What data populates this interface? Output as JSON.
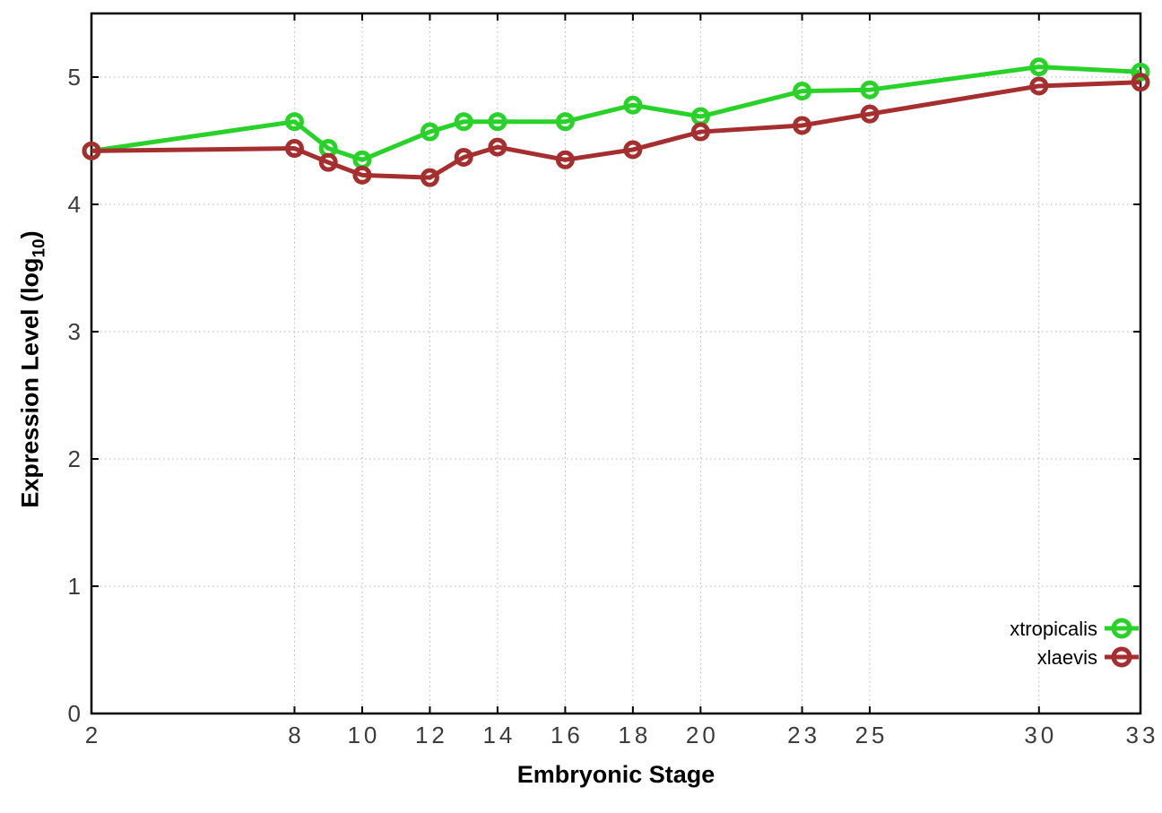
{
  "chart_data": {
    "type": "line",
    "title": "",
    "xlabel": "Embryonic Stage",
    "ylabel": {
      "text": "Expression Level (log",
      "subscript": "10",
      "suffix": ")"
    },
    "x": [
      2,
      8,
      9,
      10,
      12,
      13,
      14,
      16,
      18,
      20,
      23,
      25,
      30,
      33
    ],
    "series": [
      {
        "name": "xtropicalis",
        "color": "#28d228",
        "marker": "open-circle",
        "values": [
          4.42,
          4.65,
          4.44,
          4.35,
          4.57,
          4.65,
          4.65,
          4.65,
          4.78,
          4.69,
          4.89,
          4.9,
          5.08,
          5.04
        ]
      },
      {
        "name": "xlaevis",
        "color": "#a52e2e",
        "marker": "open-circle",
        "values": [
          4.42,
          4.44,
          4.33,
          4.23,
          4.21,
          4.37,
          4.45,
          4.35,
          4.43,
          4.57,
          4.62,
          4.71,
          4.93,
          4.96
        ]
      }
    ],
    "xticks": [
      2,
      8,
      10,
      12,
      14,
      16,
      18,
      20,
      23,
      25,
      30,
      33
    ],
    "yticks": [
      0,
      1,
      2,
      3,
      4,
      5
    ],
    "xlim": [
      2,
      33
    ],
    "ylim": [
      0,
      5.5
    ],
    "grid": true,
    "legend_position": "right-lower-inside",
    "axis_color": "#000000",
    "grid_color": "#b5b5b5",
    "tick_label_color": "#3c3c3c",
    "legend_text_color": "#000000"
  }
}
